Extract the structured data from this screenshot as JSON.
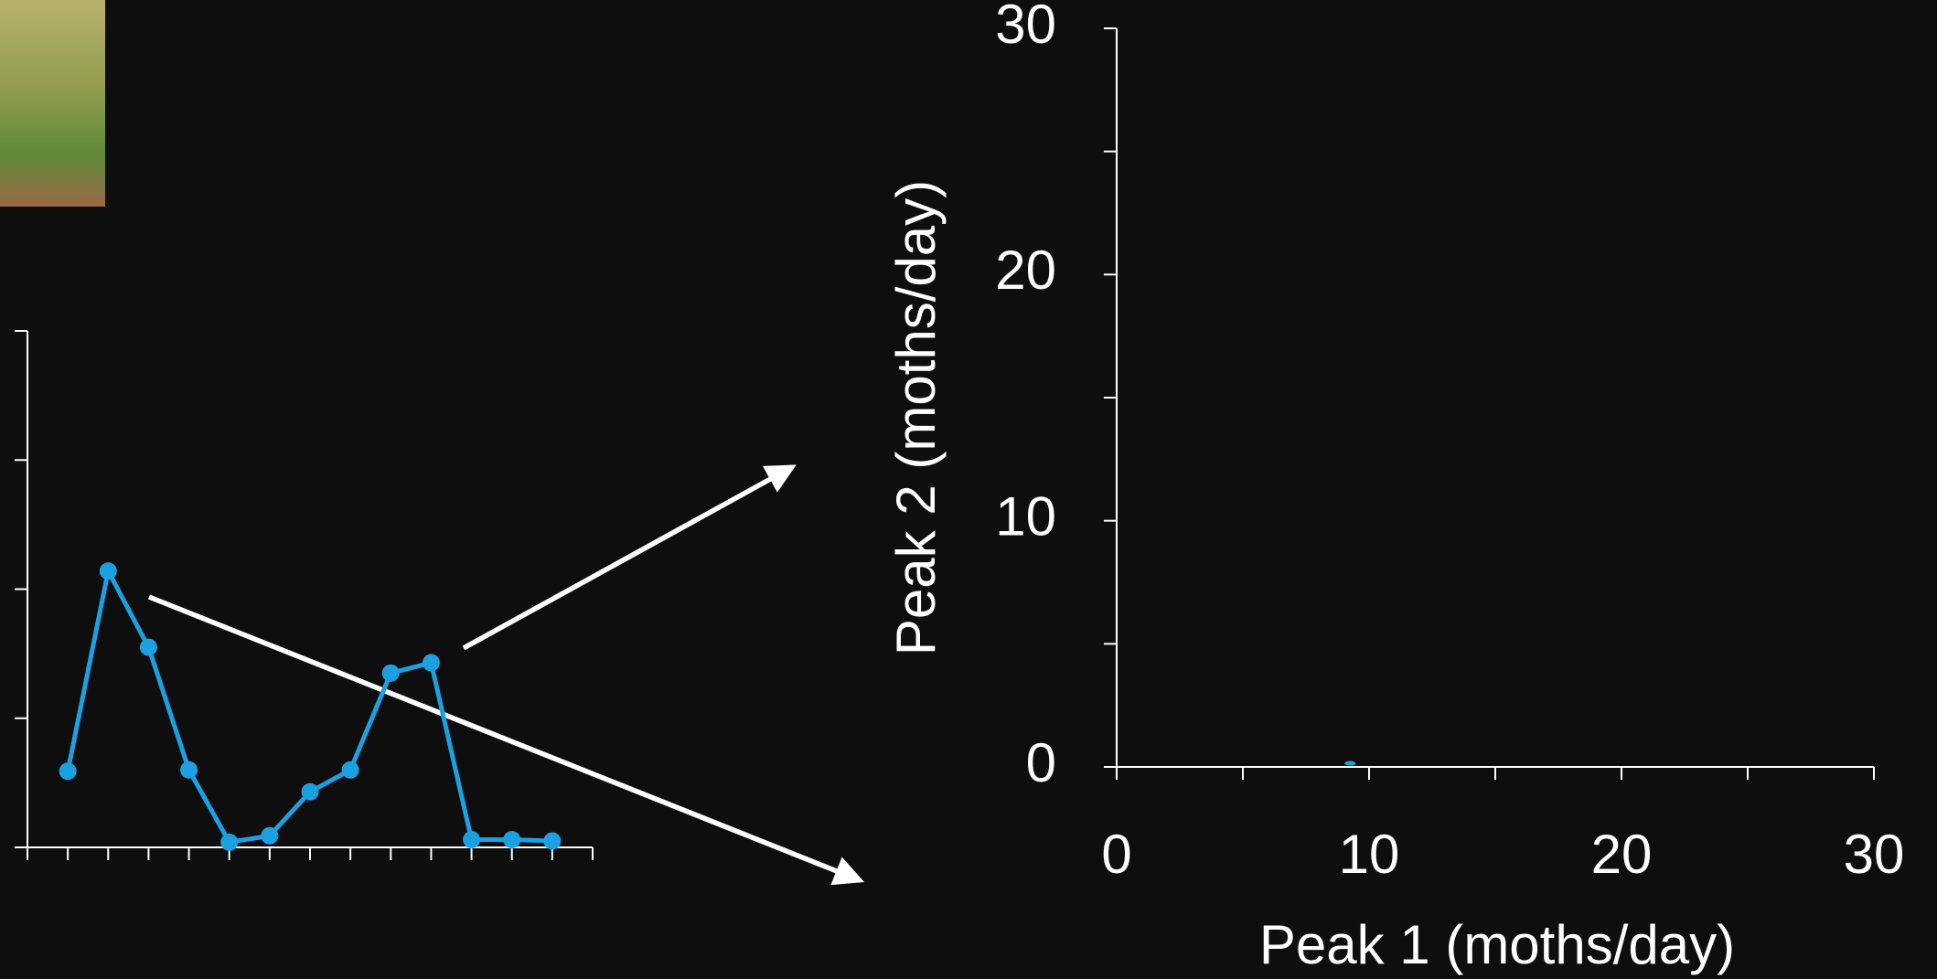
{
  "chart_data": [
    {
      "type": "line",
      "x": [
        1,
        2,
        3,
        4,
        5,
        6,
        7,
        8,
        9,
        10,
        11,
        12,
        13
      ],
      "series": [
        {
          "color": "#1ba1e2",
          "values": [
            0.59,
            2.14,
            1.55,
            0.6,
            0.04,
            0.09,
            0.43,
            0.6,
            1.35,
            1.43,
            0.06,
            0.06,
            0.05
          ]
        }
      ],
      "xlim": [
        0,
        14
      ],
      "ylim": [
        0,
        4
      ],
      "xticks": [
        0,
        1,
        2,
        3,
        4,
        5,
        6,
        7,
        8,
        9,
        10,
        11,
        12,
        13,
        14
      ],
      "yticks": [
        0,
        1,
        2,
        3,
        4
      ]
    },
    {
      "type": "scatter",
      "x_label": "Peak 1 (moths/day)",
      "y_label": "Peak 2 (moths/day)",
      "series": [
        {
          "color": "#1ba1e2",
          "x": [
            9.25
          ],
          "values": [
            0.15
          ]
        }
      ],
      "xlim": [
        0,
        30
      ],
      "ylim": [
        0,
        30
      ],
      "xticks": [
        0,
        10,
        20,
        30
      ],
      "yticks": [
        0,
        10,
        20,
        30
      ],
      "xminorticks": [
        5,
        15,
        25
      ],
      "yminorticks": [
        5,
        15,
        25
      ]
    }
  ]
}
